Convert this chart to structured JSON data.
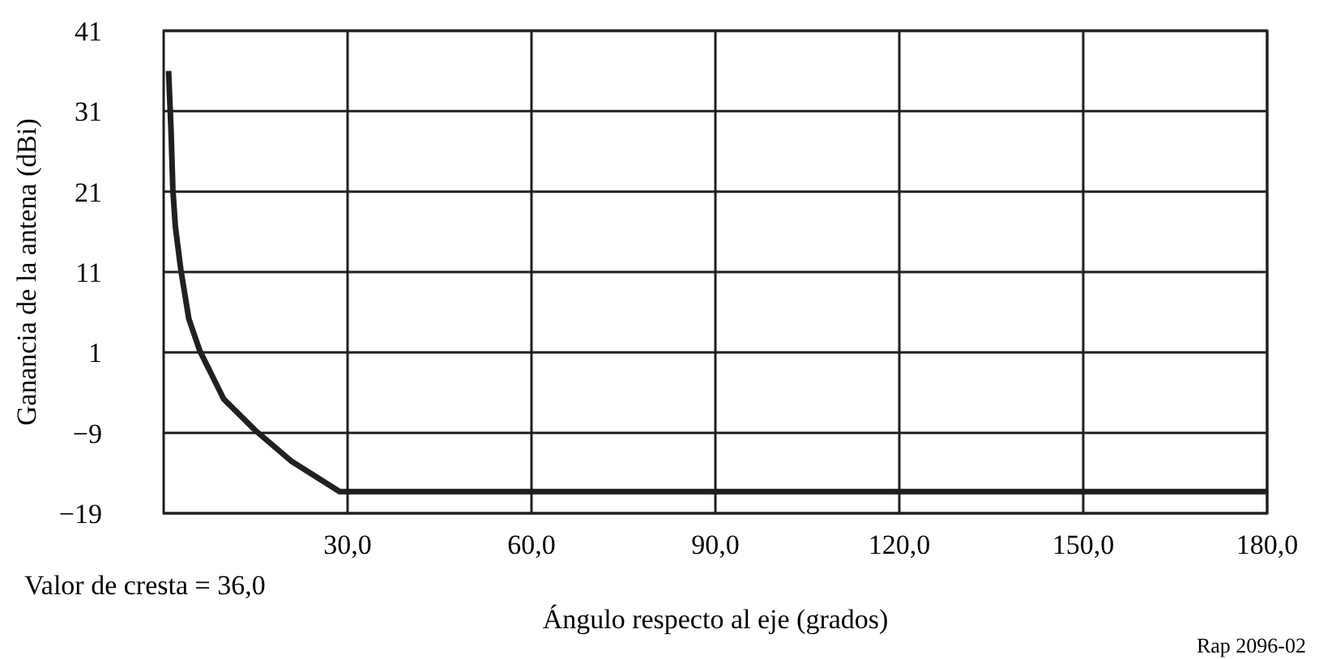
{
  "chart_data": {
    "type": "line",
    "xlabel": "Ángulo respecto al eje (grados)",
    "ylabel": "Ganancia de la antena (dBi)",
    "annotations": [
      "Valor de cresta = 36,0",
      "Rap 2096-02"
    ],
    "x": [
      0.8,
      1.2,
      1.5,
      1.9,
      2.8,
      4.1,
      5.9,
      9.8,
      15.1,
      20.8,
      28.7,
      60,
      120,
      180
    ],
    "series": [
      {
        "color": "#231f20",
        "values": [
          36,
          28.7,
          21.3,
          16.7,
          11.3,
          5.2,
          1.2,
          -4.8,
          -8.8,
          -12.5,
          -16.3,
          -16.3,
          -16.3,
          -16.3
        ]
      }
    ],
    "xlim": [
      0,
      180
    ],
    "xticks": [
      {
        "value": 30,
        "label": "30,0"
      },
      {
        "value": 60,
        "label": "60,0"
      },
      {
        "value": 90,
        "label": "90,0"
      },
      {
        "value": 120,
        "label": "120,0"
      },
      {
        "value": 150,
        "label": "150,0"
      },
      {
        "value": 180,
        "label": "180,0"
      }
    ],
    "ylim": [
      -19,
      41
    ],
    "yticks": [
      -19,
      -9,
      1,
      11,
      21,
      31,
      41
    ],
    "grid": true,
    "line_style": "solid"
  }
}
